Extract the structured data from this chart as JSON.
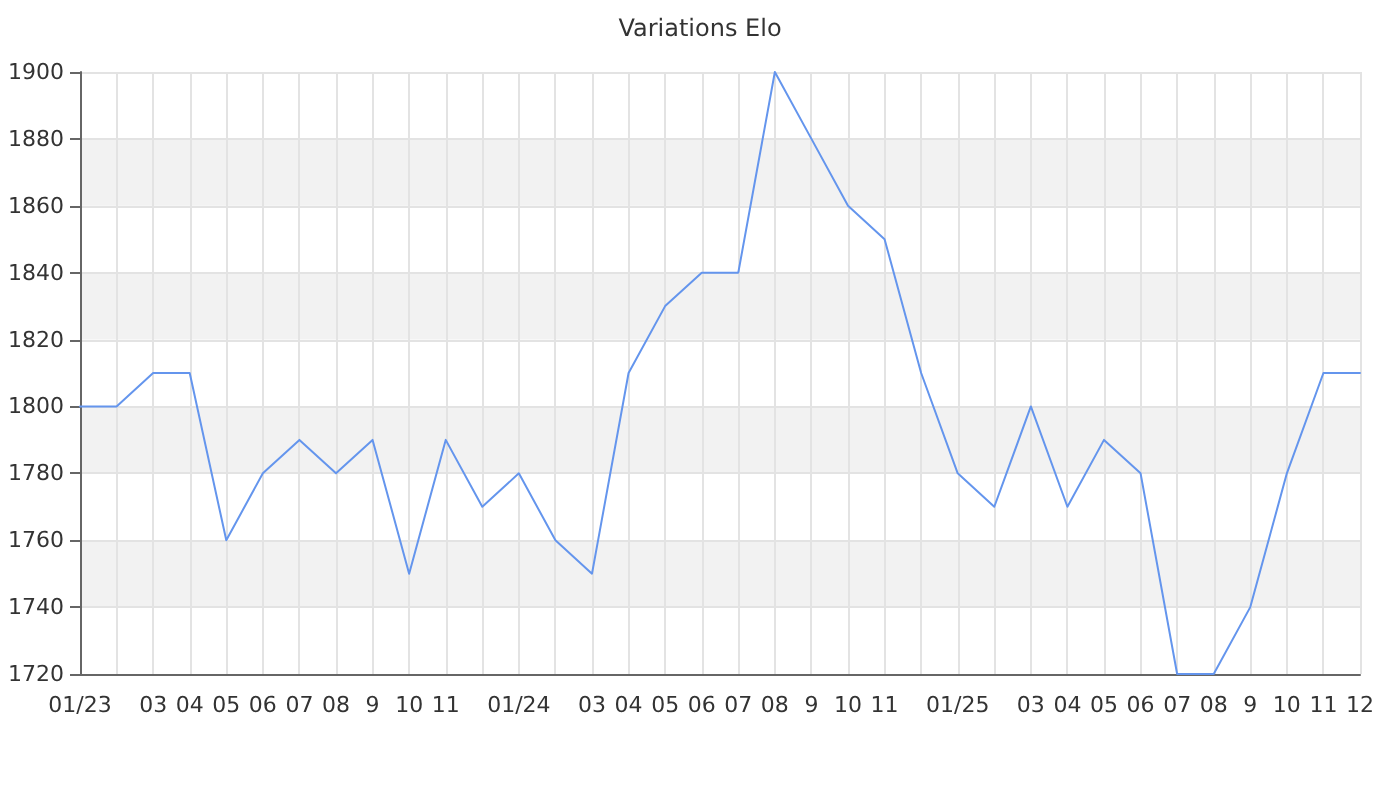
{
  "chart_data": {
    "type": "line",
    "title": "Variations Elo",
    "categories": [
      "01/23",
      null,
      "03",
      "04",
      "05",
      "06",
      "07",
      "08",
      "9",
      "10",
      "11",
      null,
      "01/24",
      null,
      "03",
      "04",
      "05",
      "06",
      "07",
      "08",
      "9",
      "10",
      "11",
      null,
      "01/25",
      null,
      "03",
      "04",
      "05",
      "06",
      "07",
      "08",
      "9",
      "10",
      "11",
      "12"
    ],
    "series": [
      {
        "color": "#6495ed",
        "values": [
          1800,
          1800,
          1810,
          1810,
          1760,
          1780,
          1790,
          1780,
          1790,
          1750,
          1790,
          1770,
          1780,
          1760,
          1750,
          1810,
          1830,
          1840,
          1840,
          1900,
          1880,
          1860,
          1850,
          1810,
          1780,
          1770,
          1800,
          1770,
          1790,
          1780,
          1720,
          1720,
          1740,
          1780,
          1810,
          1810
        ]
      }
    ],
    "ylim": [
      1720,
      1900
    ],
    "yticks": [
      1720,
      1740,
      1760,
      1780,
      1800,
      1820,
      1840,
      1860,
      1880,
      1900
    ],
    "grid": true,
    "marker": "none",
    "line_style": "solid"
  }
}
